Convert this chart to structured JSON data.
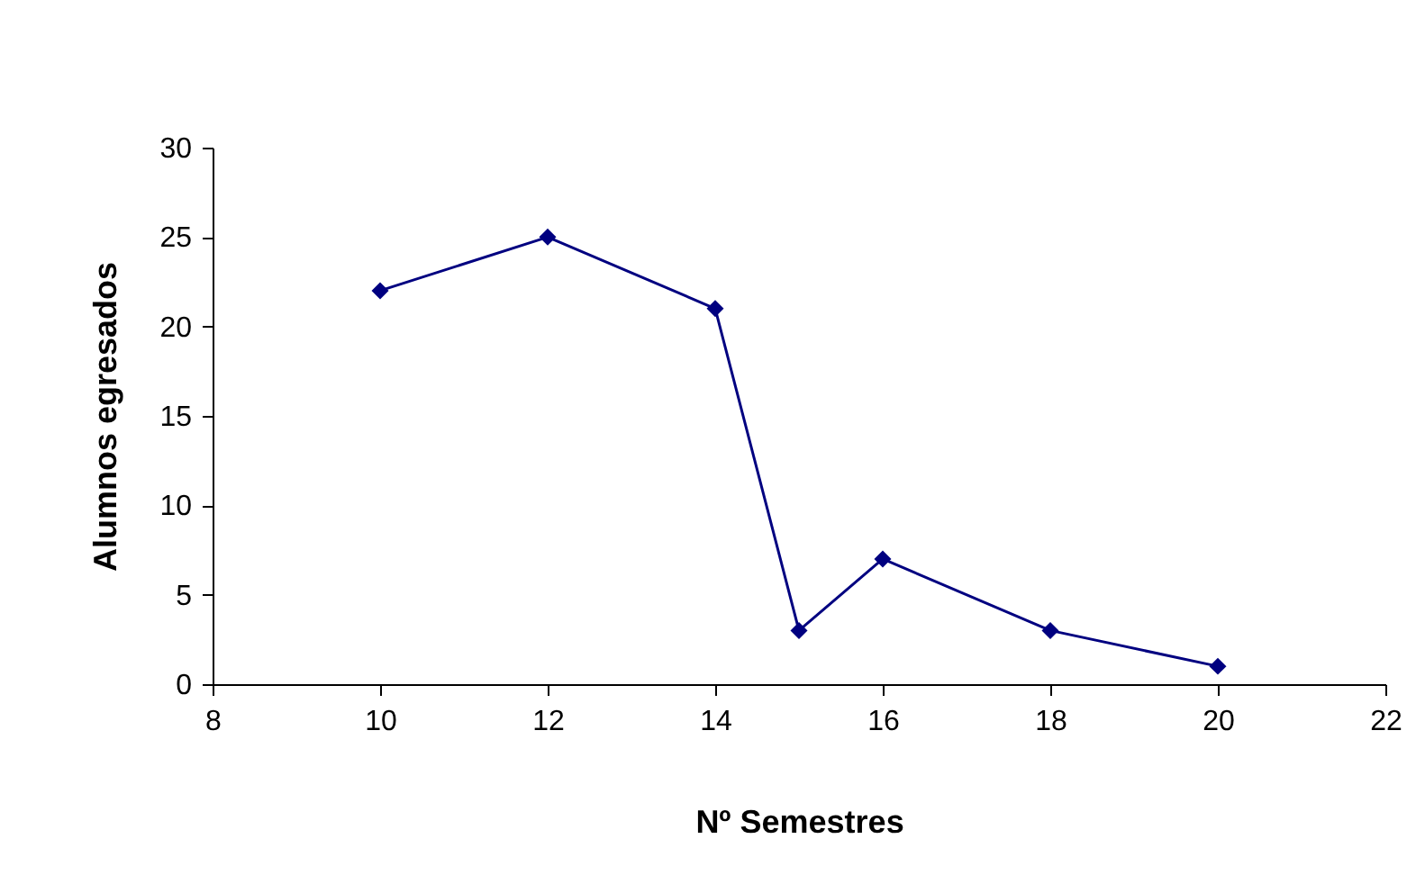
{
  "chart_data": {
    "type": "line",
    "xlabel": "Nº Semestres",
    "ylabel": "Alumnos egresados",
    "x": [
      10,
      12,
      14,
      15,
      16,
      18,
      20
    ],
    "series": [
      {
        "color": "#000080",
        "values": [
          22,
          25,
          21,
          3,
          7,
          3,
          1
        ]
      }
    ],
    "xlim": [
      8,
      22
    ],
    "xticks": [
      8,
      10,
      12,
      14,
      16,
      18,
      20,
      22
    ],
    "ylim": [
      0,
      30
    ],
    "yticks": [
      0,
      5,
      10,
      15,
      20,
      25,
      30
    ],
    "grid": false,
    "legend": false,
    "marker": "diamond",
    "line_style": "solid"
  }
}
